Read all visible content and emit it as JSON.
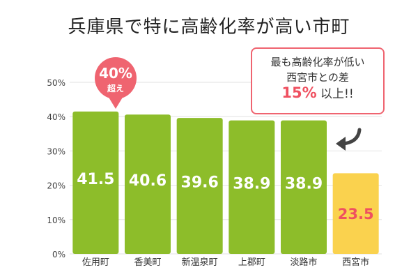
{
  "title": "兵庫県で特に高齢化率が高い市町",
  "badge": {
    "value": "40%",
    "sub": "超え"
  },
  "callout": {
    "line1": "最も高齢化率が低い",
    "line2": "西宮市との差",
    "highlight": "15%",
    "rest": " 以上!!"
  },
  "colors": {
    "bar": "#8dbd2a",
    "bar_highlight": "#fad24e",
    "value_label": "#ffffff",
    "value_label_highlight": "#ef5060",
    "accent": "#ef6470"
  },
  "chart_data": {
    "type": "bar",
    "categories": [
      "佐用町",
      "香美町",
      "新温泉町",
      "上郡町",
      "淡路市",
      "西宮市"
    ],
    "values": [
      41.5,
      40.6,
      39.6,
      38.9,
      38.9,
      23.5
    ],
    "value_labels": [
      "41.5",
      "40.6",
      "39.6",
      "38.9",
      "38.9",
      "23.5"
    ],
    "highlight_index": 5,
    "yticks": [
      "0%",
      "10%",
      "20%",
      "30%",
      "40%",
      "50%"
    ],
    "ylim": [
      0,
      50
    ],
    "grid": true
  }
}
